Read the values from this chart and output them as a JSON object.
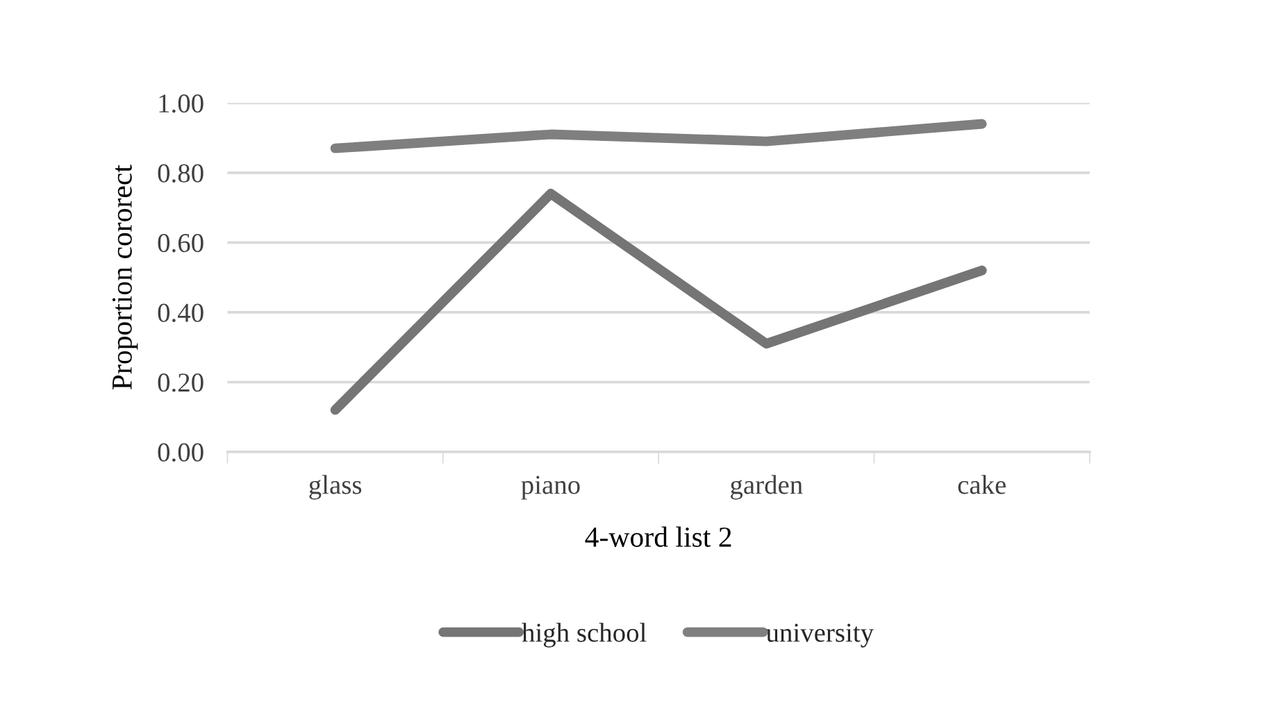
{
  "chart_data": {
    "type": "line",
    "xlabel": "4-word list 2",
    "ylabel": "Proportion cororect",
    "categories": [
      "glass",
      "piano",
      "garden",
      "cake"
    ],
    "series": [
      {
        "name": "high school",
        "color": "#757575",
        "values": [
          0.12,
          0.74,
          0.31,
          0.52
        ]
      },
      {
        "name": "university",
        "color": "#7f7f7f",
        "values": [
          0.87,
          0.91,
          0.89,
          0.94
        ]
      }
    ],
    "ylim": [
      0,
      1.0
    ],
    "yticks": [
      {
        "value": 0,
        "label": "0.00"
      },
      {
        "value": 0.2,
        "label": "0.20"
      },
      {
        "value": 0.4,
        "label": "0.40"
      },
      {
        "value": 0.6,
        "label": "0.60"
      },
      {
        "value": 0.8,
        "label": "0.80"
      },
      {
        "value": 1.0,
        "label": "1.00"
      }
    ],
    "grid": "y",
    "legend": "bottom",
    "marker": "none",
    "line_style": "solid"
  }
}
